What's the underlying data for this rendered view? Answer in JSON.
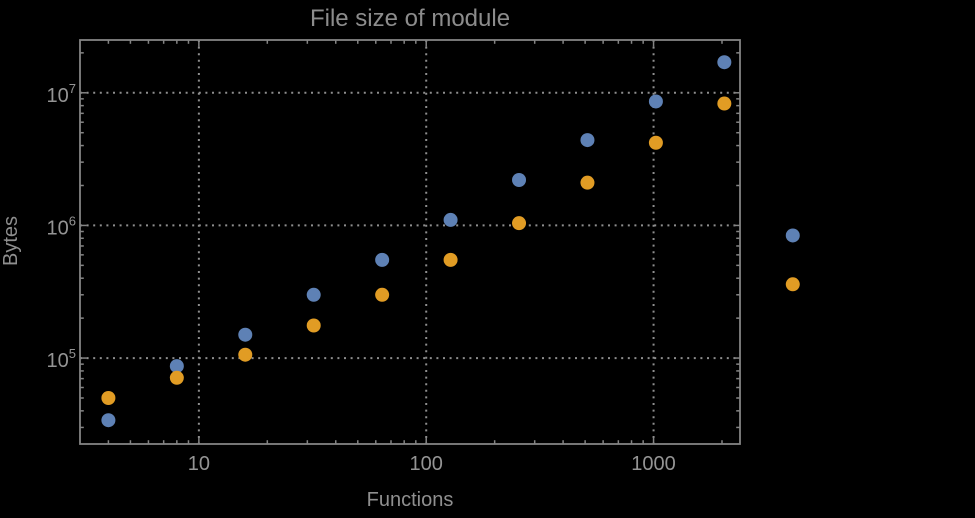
{
  "chart_data": {
    "type": "scatter",
    "title": "File size of module",
    "xlabel": "Functions",
    "ylabel": "Bytes",
    "x_scale": "log",
    "y_scale": "log",
    "x_range": [
      3,
      2400
    ],
    "y_range": [
      22500,
      25000000
    ],
    "grid": "dotted lines at decade ticks, both axes",
    "legend": "none",
    "marker_diameter_px": 14,
    "x": [
      4,
      8,
      16,
      32,
      64,
      128,
      256,
      512,
      1024,
      2048,
      4096
    ],
    "series": [
      {
        "name": "blue-series",
        "color": "#5e81b5",
        "values": [
          34000,
          87000,
          150000,
          300000,
          550000,
          1100000,
          2200000,
          4400000,
          8600000,
          17000000,
          840000
        ]
      },
      {
        "name": "orange-series",
        "color": "#e19c24",
        "values": [
          50000,
          71000,
          106000,
          176000,
          300000,
          550000,
          1040000,
          2100000,
          4200000,
          8300000,
          360000
        ]
      }
    ],
    "x_ticks": [
      {
        "value": 10,
        "label": "10"
      },
      {
        "value": 100,
        "label": "100"
      },
      {
        "value": 1000,
        "label": "1000"
      }
    ],
    "y_ticks": [
      {
        "value": 100000,
        "base": "10",
        "exp": "5"
      },
      {
        "value": 1000000,
        "base": "10",
        "exp": "6"
      },
      {
        "value": 10000000,
        "base": "10",
        "exp": "7"
      }
    ],
    "colors": {
      "background": "#000000",
      "frame": "#848484",
      "grid": "#8e8e8e",
      "tick_labels": "#949494",
      "axis_labels": "#8f8f8f",
      "title": "#8c8c8c"
    }
  }
}
